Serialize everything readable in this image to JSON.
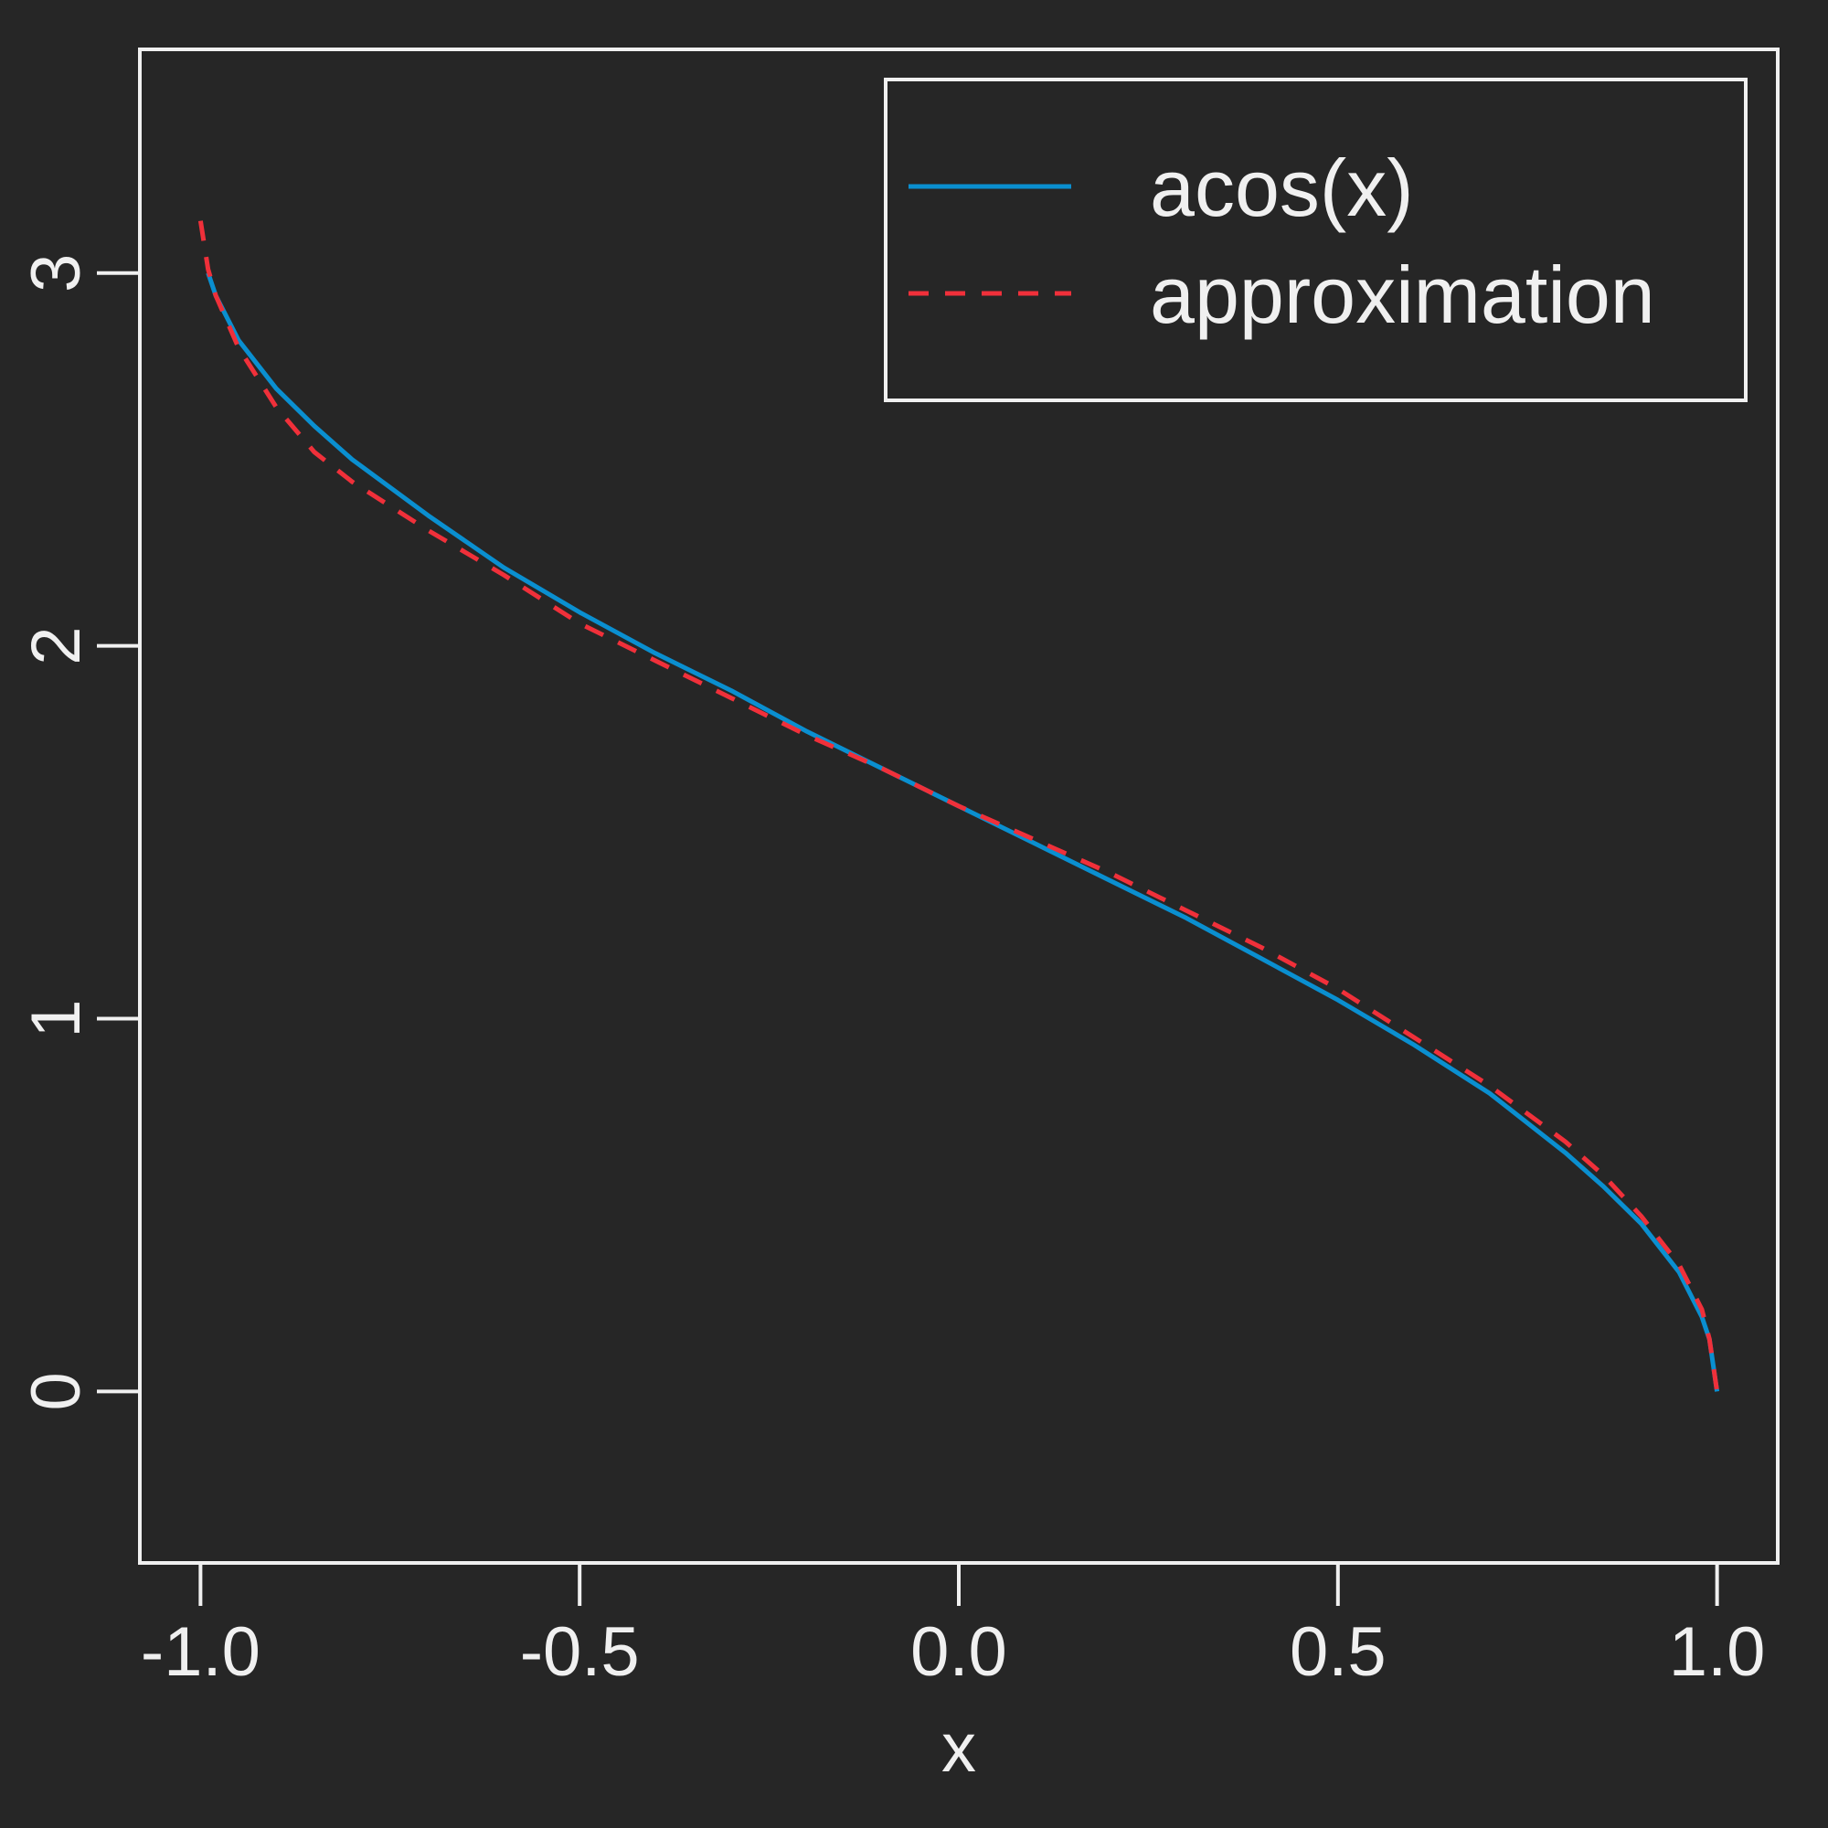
{
  "colors": {
    "background": "#262626",
    "foreground": "#f0f0f0",
    "series_acos": "#0a8fd0",
    "series_approx": "#f0303a"
  },
  "chart_data": {
    "type": "line",
    "title": "",
    "xlabel": "x",
    "ylabel": "",
    "xlim": [
      -1.08,
      1.08
    ],
    "ylim": [
      -0.46,
      3.6
    ],
    "x_ticks": [
      -1.0,
      -0.5,
      0.0,
      0.5,
      1.0
    ],
    "x_tick_labels": [
      "-1.0",
      "-0.5",
      "0.0",
      "0.5",
      "1.0"
    ],
    "y_ticks": [
      0,
      1,
      2,
      3
    ],
    "y_tick_labels": [
      "0",
      "1",
      "2",
      "3"
    ],
    "grid": false,
    "legend_position": "top-right",
    "series": [
      {
        "name": "acos(x)",
        "style": "solid",
        "x": [
          -0.99,
          -0.98,
          -0.95,
          -0.9,
          -0.85,
          -0.8,
          -0.7,
          -0.6,
          -0.5,
          -0.4,
          -0.3,
          -0.2,
          -0.1,
          0.0,
          0.1,
          0.2,
          0.3,
          0.4,
          0.5,
          0.6,
          0.7,
          0.8,
          0.85,
          0.9,
          0.95,
          0.98,
          0.99,
          1.0
        ],
        "y": [
          3.0,
          2.94,
          2.82,
          2.69,
          2.59,
          2.5,
          2.35,
          2.21,
          2.09,
          1.98,
          1.88,
          1.77,
          1.67,
          1.57,
          1.47,
          1.37,
          1.27,
          1.16,
          1.05,
          0.93,
          0.8,
          0.64,
          0.55,
          0.45,
          0.32,
          0.2,
          0.14,
          0.0
        ]
      },
      {
        "name": "approximation",
        "style": "dashed",
        "x": [
          -1.0,
          -0.99,
          -0.98,
          -0.95,
          -0.9,
          -0.85,
          -0.8,
          -0.7,
          -0.6,
          -0.5,
          -0.4,
          -0.3,
          -0.2,
          -0.1,
          0.0,
          0.1,
          0.2,
          0.3,
          0.4,
          0.5,
          0.6,
          0.7,
          0.8,
          0.85,
          0.9,
          0.95,
          0.98,
          0.99,
          1.0
        ],
        "y": [
          3.14,
          3.01,
          2.94,
          2.8,
          2.64,
          2.52,
          2.44,
          2.31,
          2.19,
          2.06,
          1.96,
          1.86,
          1.76,
          1.67,
          1.57,
          1.48,
          1.39,
          1.29,
          1.19,
          1.08,
          0.95,
          0.82,
          0.67,
          0.58,
          0.47,
          0.34,
          0.22,
          0.14,
          0.0
        ]
      }
    ]
  }
}
